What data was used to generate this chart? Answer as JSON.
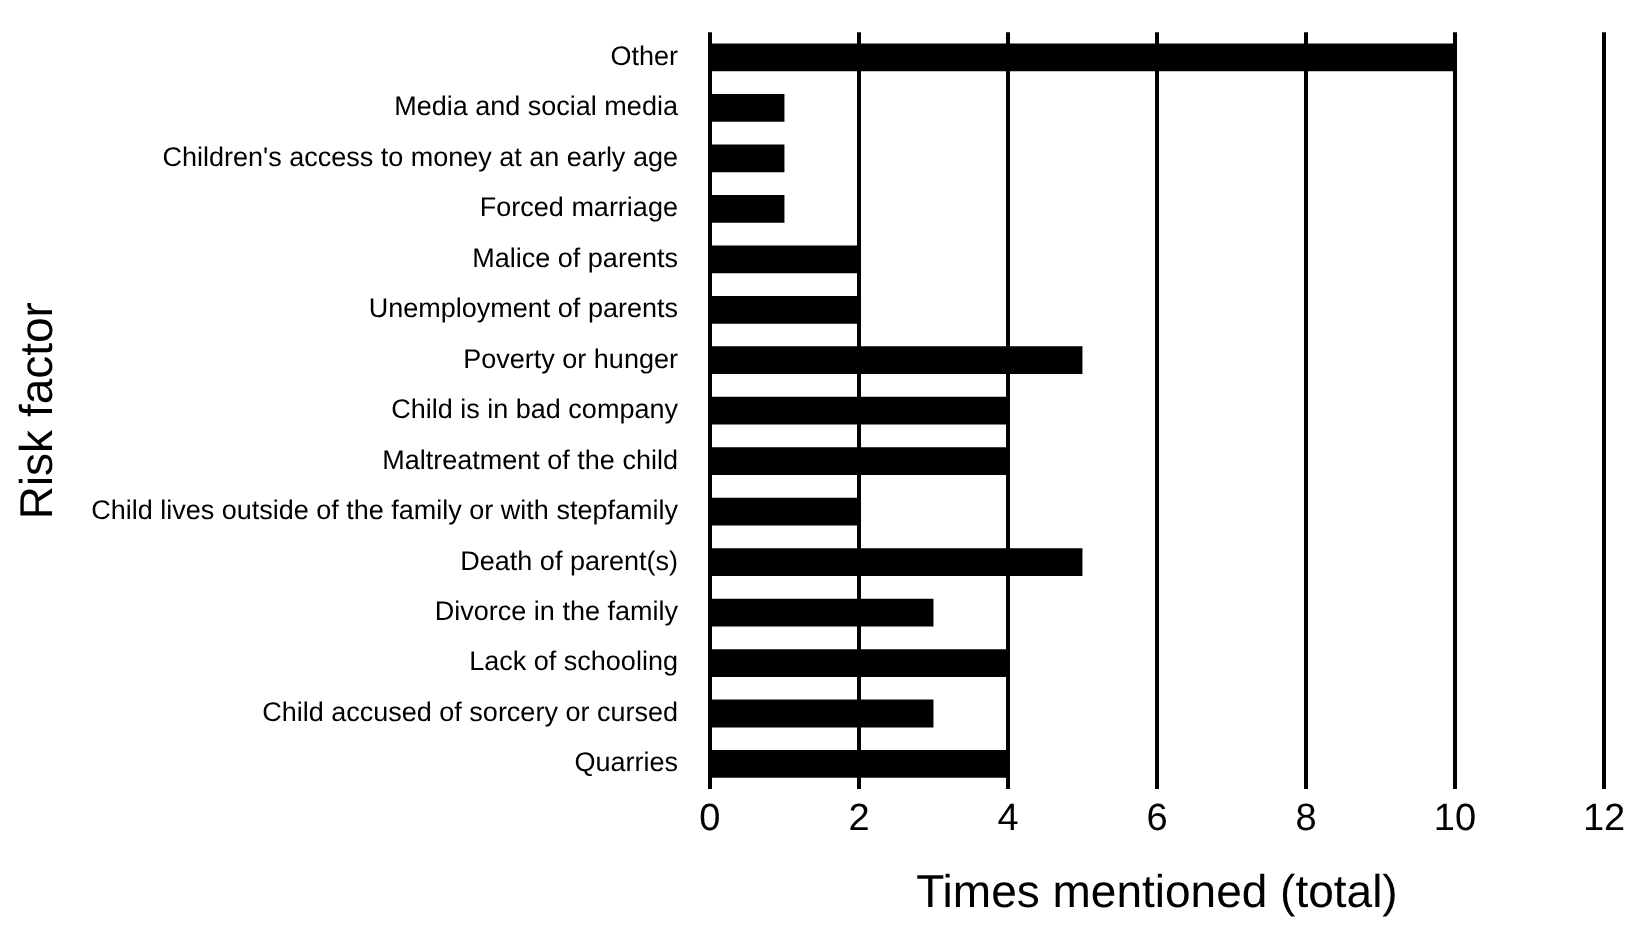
{
  "chart_data": {
    "type": "bar",
    "orientation": "horizontal",
    "xlabel": "Times mentioned (total)",
    "ylabel": "Risk factor",
    "categories": [
      "Other",
      "Media and social media",
      "Children's access to money at an early age",
      "Forced marriage",
      "Malice of parents",
      "Unemployment of parents",
      "Poverty or hunger",
      "Child is in bad company",
      "Maltreatment of the child",
      "Child lives outside of the family or with stepfamily",
      "Death of parent(s)",
      "Divorce in the family",
      "Lack of schooling",
      "Child accused of sorcery or cursed",
      "Quarries"
    ],
    "values": [
      10,
      1,
      1,
      1,
      2,
      2,
      5,
      4,
      4,
      2,
      5,
      3,
      4,
      3,
      4
    ],
    "color": "#000000",
    "xlim": [
      0,
      12
    ],
    "xticks": [
      0,
      2,
      4,
      6,
      8,
      10,
      12
    ],
    "grid": "x"
  }
}
